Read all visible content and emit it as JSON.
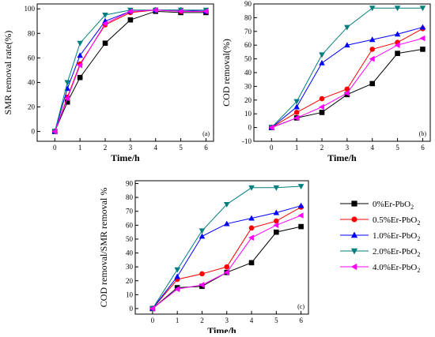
{
  "chart_data": [
    {
      "panel": "a",
      "type": "line",
      "panel_label": "(a)",
      "xlabel": "Time/h",
      "ylabel": "SMR removal rate(%)",
      "xlim": [
        -0.7,
        6.3
      ],
      "ylim": [
        -8,
        104
      ],
      "xticks": [
        0,
        1,
        2,
        3,
        4,
        5,
        6
      ],
      "yticks": [
        0,
        20,
        40,
        60,
        80,
        100
      ],
      "grid": false,
      "series": [
        {
          "name": "0%Er-PbO2",
          "x": [
            0,
            0.5,
            1,
            2,
            3,
            4,
            5,
            6
          ],
          "y": [
            0,
            24,
            44,
            72,
            91,
            98,
            97,
            97
          ]
        },
        {
          "name": "0.5%Er-PbO2",
          "x": [
            0,
            0.5,
            1,
            2,
            3,
            4,
            5,
            6
          ],
          "y": [
            0,
            28,
            55,
            87,
            97,
            99,
            98,
            98
          ]
        },
        {
          "name": "1.0%Er-PbO2",
          "x": [
            0,
            0.5,
            1,
            2,
            3,
            4,
            5,
            6
          ],
          "y": [
            0,
            35,
            62,
            90,
            98,
            99,
            99,
            98
          ]
        },
        {
          "name": "2.0%Er-PbO2",
          "x": [
            0,
            0.5,
            1,
            2,
            3,
            4,
            5,
            6
          ],
          "y": [
            0,
            40,
            72,
            95,
            99,
            99,
            99,
            99
          ]
        },
        {
          "name": "4.0%Er-PbO2",
          "x": [
            0,
            0.5,
            1,
            2,
            3,
            4,
            5,
            6
          ],
          "y": [
            0,
            27,
            54,
            88,
            98,
            99,
            98,
            98
          ]
        }
      ]
    },
    {
      "panel": "b",
      "type": "line",
      "panel_label": "(b)",
      "xlabel": "Time/h",
      "ylabel": "COD removal(%)",
      "xlim": [
        -0.7,
        6.3
      ],
      "ylim": [
        -10,
        90
      ],
      "xticks": [
        0,
        1,
        2,
        3,
        4,
        5,
        6
      ],
      "yticks": [
        -10,
        0,
        10,
        20,
        30,
        40,
        50,
        60,
        70,
        80,
        90
      ],
      "grid": false,
      "series": [
        {
          "name": "0%Er-PbO2",
          "x": [
            0,
            1,
            2,
            3,
            4,
            5,
            6
          ],
          "y": [
            0,
            7,
            11,
            24,
            32,
            54,
            57
          ]
        },
        {
          "name": "0.5%Er-PbO2",
          "x": [
            0,
            1,
            2,
            3,
            4,
            5,
            6
          ],
          "y": [
            0,
            11,
            21,
            28,
            57,
            62,
            72
          ]
        },
        {
          "name": "1.0%Er-PbO2",
          "x": [
            0,
            1,
            2,
            3,
            4,
            5,
            6
          ],
          "y": [
            0,
            15,
            47,
            60,
            64,
            68,
            73
          ]
        },
        {
          "name": "2.0%Er-PbO2",
          "x": [
            0,
            1,
            2,
            3,
            4,
            5,
            6
          ],
          "y": [
            0,
            19,
            53,
            73,
            87,
            87,
            87
          ]
        },
        {
          "name": "4.0%Er-PbO2",
          "x": [
            0,
            1,
            2,
            3,
            4,
            5,
            6
          ],
          "y": [
            0,
            7,
            15,
            25,
            50,
            60,
            65
          ]
        }
      ]
    },
    {
      "panel": "c",
      "type": "line",
      "panel_label": "(c)",
      "xlabel": "Time/h",
      "ylabel": "COD removal/SMR removal %",
      "xlim": [
        -0.7,
        6.3
      ],
      "ylim": [
        -4,
        92
      ],
      "xticks": [
        0,
        1,
        2,
        3,
        4,
        5,
        6
      ],
      "yticks": [
        0,
        10,
        20,
        30,
        40,
        50,
        60,
        70,
        80,
        90
      ],
      "grid": false,
      "legend": "right",
      "series": [
        {
          "name": "0%Er-PbO2",
          "x": [
            0,
            1,
            2,
            3,
            4,
            5,
            6
          ],
          "y": [
            0,
            15,
            16,
            26,
            33,
            55,
            59
          ]
        },
        {
          "name": "0.5%Er-PbO2",
          "x": [
            0,
            1,
            2,
            3,
            4,
            5,
            6
          ],
          "y": [
            0,
            21,
            25,
            30,
            58,
            63,
            73
          ]
        },
        {
          "name": "1.0%Er-PbO2",
          "x": [
            0,
            1,
            2,
            3,
            4,
            5,
            6
          ],
          "y": [
            0,
            23,
            52,
            61,
            65,
            69,
            74
          ]
        },
        {
          "name": "2.0%Er-PbO2",
          "x": [
            0,
            1,
            2,
            3,
            4,
            5,
            6
          ],
          "y": [
            0,
            28,
            56,
            75,
            87,
            87,
            88
          ]
        },
        {
          "name": "4.0%Er-PbO2",
          "x": [
            0,
            1,
            2,
            3,
            4,
            5,
            6
          ],
          "y": [
            0,
            14,
            17,
            26,
            51,
            60,
            67
          ]
        }
      ]
    }
  ],
  "legend": {
    "items": [
      {
        "label": "0%Er-PbO",
        "sub": "2",
        "color": "#000000",
        "marker": "square"
      },
      {
        "label": "0.5%Er-PbO",
        "sub": "2",
        "color": "#ff0000",
        "marker": "circle"
      },
      {
        "label": "1.0%Er-PbO",
        "sub": "2",
        "color": "#0000ff",
        "marker": "triangle-up"
      },
      {
        "label": "2.0%Er-PbO",
        "sub": "2",
        "color": "#007f7f",
        "marker": "triangle-down"
      },
      {
        "label": "4.0%Er-PbO",
        "sub": "2",
        "color": "#ff00ff",
        "marker": "triangle-left"
      }
    ]
  }
}
